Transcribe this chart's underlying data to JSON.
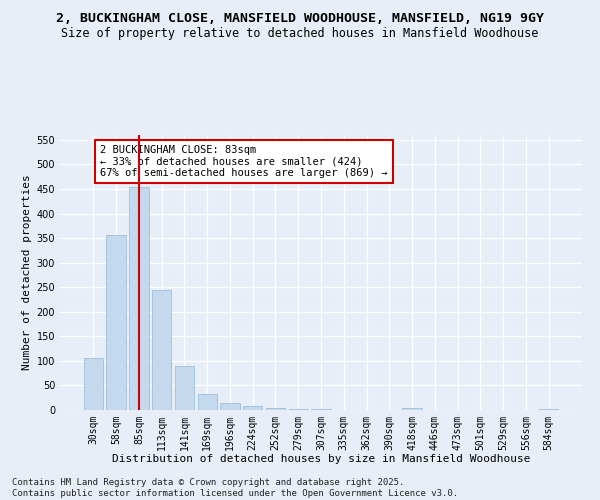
{
  "title": "2, BUCKINGHAM CLOSE, MANSFIELD WOODHOUSE, MANSFIELD, NG19 9GY",
  "subtitle": "Size of property relative to detached houses in Mansfield Woodhouse",
  "xlabel": "Distribution of detached houses by size in Mansfield Woodhouse",
  "ylabel": "Number of detached properties",
  "categories": [
    "30sqm",
    "58sqm",
    "85sqm",
    "113sqm",
    "141sqm",
    "169sqm",
    "196sqm",
    "224sqm",
    "252sqm",
    "279sqm",
    "307sqm",
    "335sqm",
    "362sqm",
    "390sqm",
    "418sqm",
    "446sqm",
    "473sqm",
    "501sqm",
    "529sqm",
    "556sqm",
    "584sqm"
  ],
  "values": [
    106,
    357,
    454,
    245,
    90,
    32,
    14,
    9,
    5,
    3,
    2,
    0,
    0,
    0,
    4,
    0,
    0,
    0,
    0,
    0,
    3
  ],
  "bar_color": "#c5d9ee",
  "bar_edge_color": "#9fbfda",
  "vline_x": 2,
  "vline_color": "#cc0000",
  "annotation_text": "2 BUCKINGHAM CLOSE: 83sqm\n← 33% of detached houses are smaller (424)\n67% of semi-detached houses are larger (869) →",
  "annotation_box_color": "#ffffff",
  "annotation_box_edge": "#cc0000",
  "ylim": [
    0,
    560
  ],
  "yticks": [
    0,
    50,
    100,
    150,
    200,
    250,
    300,
    350,
    400,
    450,
    500,
    550
  ],
  "background_color": "#e8eef7",
  "grid_color": "#ffffff",
  "footer": "Contains HM Land Registry data © Crown copyright and database right 2025.\nContains public sector information licensed under the Open Government Licence v3.0.",
  "title_fontsize": 9.5,
  "subtitle_fontsize": 8.5,
  "xlabel_fontsize": 8,
  "ylabel_fontsize": 8,
  "tick_fontsize": 7,
  "annotation_fontsize": 7.5,
  "footer_fontsize": 6.5
}
